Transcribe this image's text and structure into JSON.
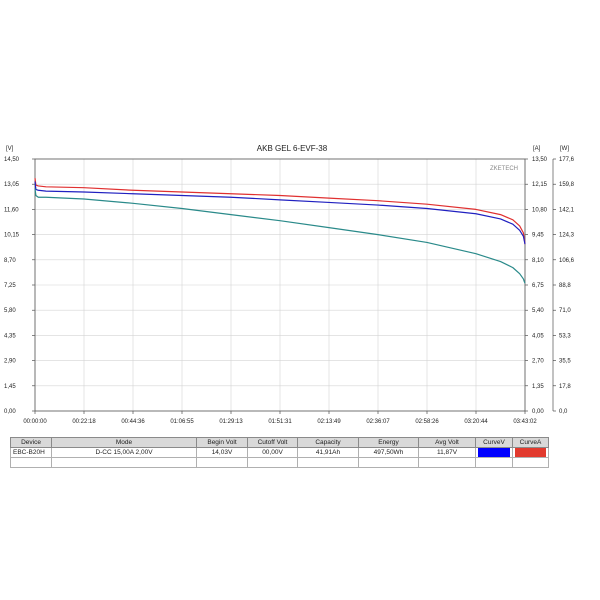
{
  "chart_data": {
    "type": "line",
    "title": "AKB GEL  6-EVF-38",
    "watermark": "ZKETECH",
    "left_unit": "[V]",
    "right_unit_a": "[A]",
    "right_unit_w": "[W]",
    "x_ticks": [
      "00:00:00",
      "00:22:18",
      "00:44:36",
      "01:06:55",
      "01:29:13",
      "01:51:31",
      "02:13:49",
      "02:36:07",
      "02:58:26",
      "03:20:44",
      "03:43:02"
    ],
    "y_left_ticks": [
      "0,00",
      "1,45",
      "2,90",
      "4,35",
      "5,80",
      "7,25",
      "8,70",
      "10,15",
      "11,60",
      "13,05",
      "14,50"
    ],
    "y_right_a_ticks": [
      "0,00",
      "1,35",
      "2,70",
      "4,05",
      "5,40",
      "6,75",
      "8,10",
      "9,45",
      "10,80",
      "12,15",
      "13,50"
    ],
    "y_right_w_ticks": [
      "0,0",
      "17,8",
      "35,5",
      "53,3",
      "71,0",
      "88,8",
      "106,6",
      "124,3",
      "142,1",
      "159,8",
      "177,6"
    ],
    "x_range_minutes": [
      0,
      223.03
    ],
    "y_left_range": [
      0,
      14.5
    ],
    "grid": true,
    "series": [
      {
        "color": "#e03030",
        "x": [
          0,
          0.4,
          1.5,
          5,
          22.3,
          44.6,
          66.9,
          89.2,
          111.5,
          133.8,
          156.1,
          178.4,
          200.7,
          211.9,
          217.5,
          220.6,
          222.3,
          222.7,
          223.03
        ],
        "y": [
          13.4,
          13.0,
          12.95,
          12.9,
          12.85,
          12.7,
          12.6,
          12.5,
          12.4,
          12.25,
          12.1,
          11.9,
          11.6,
          11.3,
          11.0,
          10.65,
          10.25,
          9.9,
          9.6
        ]
      },
      {
        "color": "#2020c0",
        "x": [
          0,
          0.4,
          1.5,
          5,
          22.3,
          44.6,
          66.9,
          89.2,
          111.5,
          133.8,
          156.1,
          178.4,
          200.7,
          211.9,
          217.5,
          220.6,
          222.3,
          222.7,
          223.03
        ],
        "y": [
          13.2,
          12.75,
          12.7,
          12.65,
          12.6,
          12.5,
          12.4,
          12.3,
          12.15,
          12.0,
          11.85,
          11.65,
          11.35,
          11.05,
          10.75,
          10.4,
          10.05,
          9.8,
          9.6
        ]
      },
      {
        "color": "#2a8a8a",
        "x": [
          0,
          0.4,
          1.5,
          5,
          22.3,
          44.6,
          66.9,
          89.2,
          111.5,
          133.8,
          156.1,
          178.4,
          200.7,
          211.9,
          217.5,
          220.6,
          222.3,
          222.7,
          223.03
        ],
        "y": [
          12.8,
          12.4,
          12.3,
          12.3,
          12.2,
          11.95,
          11.65,
          11.3,
          10.95,
          10.55,
          10.15,
          9.7,
          9.05,
          8.6,
          8.25,
          7.9,
          7.6,
          7.45,
          7.35
        ]
      }
    ]
  },
  "table": {
    "headers": [
      "Device",
      "Mode",
      "Begin Volt",
      "Cutoff Volt",
      "Capacity",
      "Energy",
      "Avg Volt",
      "CurveV",
      "CurveA"
    ],
    "row": {
      "device": "EBC-B20H",
      "mode": "D-CC 15,00A  2,00V",
      "begin_volt": "14,03V",
      "cutoff_volt": "00,00V",
      "capacity": "41,91Ah",
      "energy": "497,50Wh",
      "avg_volt": "11,87V",
      "curve_v_color": "#0000ff",
      "curve_a_color": "#e23a2e"
    }
  }
}
